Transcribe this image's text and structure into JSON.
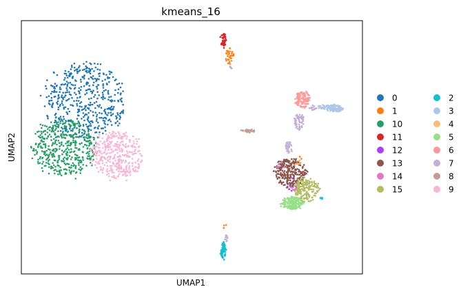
{
  "chart_data": {
    "type": "scatter",
    "title": "kmeans_16",
    "xlabel": "UMAP1",
    "ylabel": "UMAP2",
    "show_ticks": false,
    "grid": false,
    "legend_position": "right",
    "xlim": [
      0,
      100
    ],
    "ylim": [
      0,
      100
    ],
    "series": [
      {
        "name": "0",
        "color": "#1f77b4",
        "clusters": [
          {
            "cx": 18.5,
            "cy": 68,
            "rx": 11.5,
            "ry": 15,
            "n": 520
          }
        ]
      },
      {
        "name": "1",
        "color": "#ff7f0e",
        "clusters": [
          {
            "cx": 61,
            "cy": 86,
            "rx": 1.2,
            "ry": 3.0,
            "n": 35
          },
          {
            "cx": 59.5,
            "cy": 19,
            "rx": 0.6,
            "ry": 1.0,
            "n": 3
          },
          {
            "cx": 82,
            "cy": 46,
            "rx": 0.6,
            "ry": 1.0,
            "n": 3
          }
        ]
      },
      {
        "name": "10",
        "color": "#279e68",
        "clusters": [
          {
            "cx": 12.5,
            "cy": 50,
            "rx": 9,
            "ry": 11,
            "n": 460
          }
        ]
      },
      {
        "name": "11",
        "color": "#d62728",
        "clusters": [
          {
            "cx": 59.2,
            "cy": 92.5,
            "rx": 0.9,
            "ry": 3.0,
            "n": 40
          }
        ]
      },
      {
        "name": "12",
        "color": "#aa40fc",
        "clusters": [
          {
            "cx": 79.5,
            "cy": 36,
            "rx": 2.2,
            "ry": 3.0,
            "n": 25
          }
        ]
      },
      {
        "name": "13",
        "color": "#8c564b",
        "clusters": [
          {
            "cx": 78.8,
            "cy": 40,
            "rx": 4.5,
            "ry": 5.5,
            "n": 260
          }
        ]
      },
      {
        "name": "14",
        "color": "#e377c2",
        "clusters": [
          {
            "cx": 80,
            "cy": 33,
            "rx": 1.5,
            "ry": 2.0,
            "n": 12
          },
          {
            "cx": 76,
            "cy": 42,
            "rx": 1.5,
            "ry": 2.0,
            "n": 8
          }
        ]
      },
      {
        "name": "15",
        "color": "#b5bd61",
        "clusters": [
          {
            "cx": 83.5,
            "cy": 33,
            "rx": 3.6,
            "ry": 5.0,
            "n": 190
          }
        ]
      },
      {
        "name": "2",
        "color": "#17becf",
        "clusters": [
          {
            "cx": 59.2,
            "cy": 9,
            "rx": 0.8,
            "ry": 3.5,
            "n": 70
          },
          {
            "cx": 88,
            "cy": 30,
            "rx": 0.5,
            "ry": 0.8,
            "n": 4
          }
        ]
      },
      {
        "name": "3",
        "color": "#aec7e8",
        "clusters": [
          {
            "cx": 91.5,
            "cy": 65.5,
            "rx": 3.0,
            "ry": 1.4,
            "n": 110
          },
          {
            "cx": 88,
            "cy": 66,
            "rx": 1.2,
            "ry": 0.8,
            "n": 14
          }
        ]
      },
      {
        "name": "4",
        "color": "#ffbb78",
        "clusters": [
          {
            "cx": 81,
            "cy": 44,
            "rx": 1.0,
            "ry": 1.0,
            "n": 6
          },
          {
            "cx": 66.5,
            "cy": 56,
            "rx": 0.6,
            "ry": 0.6,
            "n": 3
          }
        ]
      },
      {
        "name": "5",
        "color": "#98df8a",
        "clusters": [
          {
            "cx": 79.5,
            "cy": 28,
            "rx": 3.2,
            "ry": 2.5,
            "n": 200
          }
        ]
      },
      {
        "name": "6",
        "color": "#ff9896",
        "clusters": [
          {
            "cx": 82.5,
            "cy": 69,
            "rx": 2.2,
            "ry": 3.2,
            "n": 110
          }
        ]
      },
      {
        "name": "7",
        "color": "#c5b0d5",
        "clusters": [
          {
            "cx": 81.5,
            "cy": 60,
            "rx": 1.5,
            "ry": 3.0,
            "n": 60
          },
          {
            "cx": 78.5,
            "cy": 50,
            "rx": 1.0,
            "ry": 2.2,
            "n": 40
          },
          {
            "cx": 60,
            "cy": 14,
            "rx": 0.5,
            "ry": 1.2,
            "n": 12
          },
          {
            "cx": 85.5,
            "cy": 65.5,
            "rx": 1.2,
            "ry": 1.0,
            "n": 14
          },
          {
            "cx": 61.5,
            "cy": 82,
            "rx": 0.5,
            "ry": 1.0,
            "n": 6
          }
        ]
      },
      {
        "name": "8",
        "color": "#c49c94",
        "clusters": [
          {
            "cx": 66.5,
            "cy": 56.5,
            "rx": 2.3,
            "ry": 0.8,
            "n": 28
          }
        ]
      },
      {
        "name": "9",
        "color": "#f7b6d2",
        "clusters": [
          {
            "cx": 28,
            "cy": 47,
            "rx": 7.5,
            "ry": 9,
            "n": 380
          }
        ]
      }
    ],
    "legend": {
      "columns": [
        [
          "0",
          "1",
          "10",
          "11",
          "12",
          "13",
          "14",
          "15"
        ],
        [
          "2",
          "3",
          "4",
          "5",
          "6",
          "7",
          "8",
          "9"
        ]
      ]
    }
  }
}
